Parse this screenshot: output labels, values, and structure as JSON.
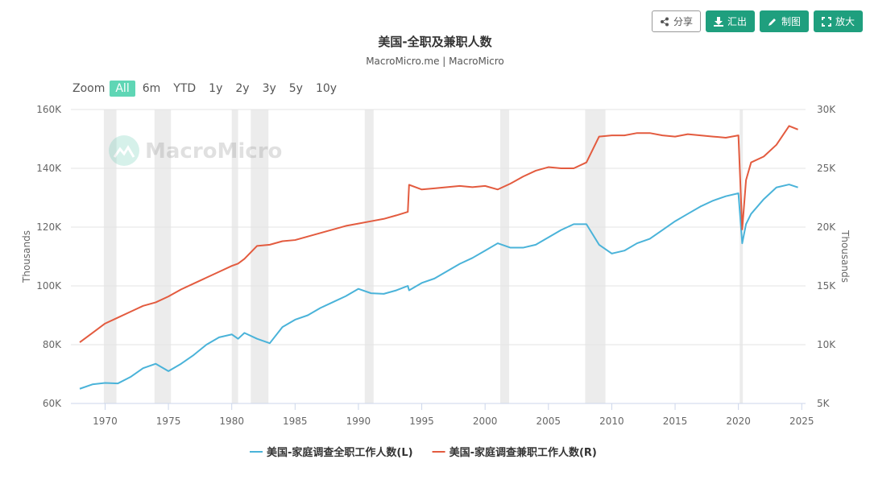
{
  "toolbar": {
    "buttons": [
      "分享",
      "汇出",
      "制图",
      "放大"
    ]
  },
  "zoom": {
    "label": "Zoom",
    "options": [
      "All",
      "6m",
      "YTD",
      "1y",
      "2y",
      "3y",
      "5y",
      "10y"
    ]
  },
  "watermark": "MacroMicro",
  "chart_data": {
    "type": "line",
    "title": "美国-全职及兼职人数",
    "subtitle": "MacroMicro.me | MacroMicro",
    "y_label": "Thousands",
    "y2_label": "Thousands",
    "xlim": [
      1967.3,
      2025.3
    ],
    "xticks": [
      1970,
      1975,
      1980,
      1985,
      1990,
      1995,
      2000,
      2005,
      2010,
      2015,
      2020,
      2025
    ],
    "ylim": [
      60000,
      160000
    ],
    "yticks": [
      {
        "value": 60000,
        "label": "60K"
      },
      {
        "value": 80000,
        "label": "80K"
      },
      {
        "value": 100000,
        "label": "100K"
      },
      {
        "value": 120000,
        "label": "120K"
      },
      {
        "value": 140000,
        "label": "140K"
      },
      {
        "value": 160000,
        "label": "160K"
      }
    ],
    "y2lim": [
      5000,
      30000
    ],
    "y2ticks": [
      {
        "value": 5000,
        "label": "5K"
      },
      {
        "value": 10000,
        "label": "10K"
      },
      {
        "value": 15000,
        "label": "15K"
      },
      {
        "value": 20000,
        "label": "20K"
      },
      {
        "value": 25000,
        "label": "25K"
      },
      {
        "value": 30000,
        "label": "30K"
      }
    ],
    "grid": true,
    "shaded_periods": [
      [
        1969.9,
        1970.9
      ],
      [
        1973.9,
        1975.2
      ],
      [
        1980.0,
        1980.5
      ],
      [
        1981.5,
        1982.9
      ],
      [
        1990.5,
        1991.2
      ],
      [
        2001.2,
        2001.9
      ],
      [
        2007.9,
        2009.5
      ],
      [
        2020.1,
        2020.35
      ]
    ],
    "x": [
      1968,
      1969,
      1970,
      1971,
      1972,
      1973,
      1974,
      1975,
      1976,
      1977,
      1978,
      1979,
      1980,
      1980.5,
      1981,
      1982,
      1983,
      1984,
      1985,
      1986,
      1987,
      1988,
      1989,
      1990,
      1991,
      1992,
      1993,
      1993.9,
      1994,
      1995,
      1996,
      1997,
      1998,
      1999,
      2000,
      2001,
      2002,
      2003,
      2004,
      2005,
      2006,
      2007,
      2008,
      2009,
      2010,
      2011,
      2012,
      2013,
      2014,
      2015,
      2016,
      2017,
      2018,
      2019,
      2020,
      2020.3,
      2020.6,
      2021,
      2022,
      2023,
      2024,
      2024.7
    ],
    "series": [
      {
        "name": "美国-家庭调查全职工作人数(L)",
        "color": "#4ab3d9",
        "axis": "y",
        "values": [
          65000,
          66500,
          67000,
          66800,
          69000,
          72000,
          73500,
          71000,
          73500,
          76500,
          80000,
          82500,
          83500,
          82000,
          84000,
          82000,
          80500,
          86000,
          88500,
          90000,
          92500,
          94500,
          96500,
          99000,
          97500,
          97300,
          98500,
          100000,
          98500,
          101000,
          102500,
          105000,
          107500,
          109500,
          112000,
          114500,
          113000,
          113000,
          114000,
          116500,
          119000,
          121000,
          121000,
          114000,
          111000,
          112000,
          114500,
          116000,
          119000,
          122000,
          124500,
          127000,
          129000,
          130500,
          131500,
          114500,
          121000,
          124500,
          129500,
          133500,
          134500,
          133500
        ]
      },
      {
        "name": "美国-家庭调查兼职工作人数(R)",
        "color": "#e35b3f",
        "axis": "y2",
        "values": [
          10200,
          11000,
          11800,
          12300,
          12800,
          13300,
          13600,
          14100,
          14700,
          15200,
          15700,
          16200,
          16700,
          16900,
          17300,
          18400,
          18500,
          18800,
          18900,
          19200,
          19500,
          19800,
          20100,
          20300,
          20500,
          20700,
          21000,
          21300,
          23600,
          23200,
          23300,
          23400,
          23500,
          23400,
          23500,
          23200,
          23700,
          24300,
          24800,
          25100,
          25000,
          25000,
          25500,
          27700,
          27800,
          27800,
          28000,
          28000,
          27800,
          27700,
          27900,
          27800,
          27700,
          27600,
          27800,
          19800,
          24000,
          25500,
          26000,
          27000,
          28600,
          28300
        ]
      }
    ]
  }
}
